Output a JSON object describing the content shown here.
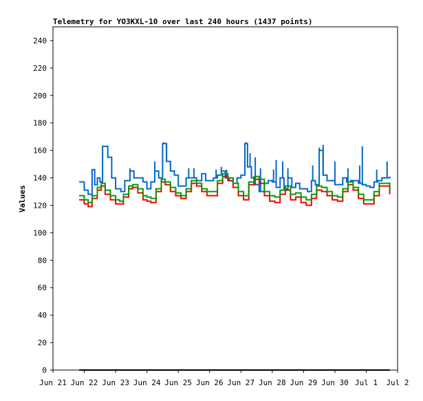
{
  "chart_data": {
    "type": "line",
    "title": "Telemetry for YO3KXL-10 over last 240 hours (1437 points)",
    "xlabel": "",
    "ylabel": "Values",
    "ylim": [
      0,
      250
    ],
    "yticks": [
      0,
      20,
      40,
      60,
      80,
      100,
      120,
      140,
      160,
      180,
      200,
      220,
      240
    ],
    "xlim": [
      "2023-06-21",
      "2023-07-02"
    ],
    "xticks": [
      {
        "date": "2023-06-21",
        "label": "Jun 21"
      },
      {
        "date": "2023-06-22",
        "label": "Jun 22"
      },
      {
        "date": "2023-06-23",
        "label": "Jun 23"
      },
      {
        "date": "2023-06-24",
        "label": "Jun 24"
      },
      {
        "date": "2023-06-25",
        "label": "Jun 25"
      },
      {
        "date": "2023-06-26",
        "label": "Jun 26"
      },
      {
        "date": "2023-06-27",
        "label": "Jun 27"
      },
      {
        "date": "2023-06-28",
        "label": "Jun 28"
      },
      {
        "date": "2023-06-29",
        "label": "Jun 29"
      },
      {
        "date": "2023-06-30",
        "label": "Jun 30"
      },
      {
        "date": "2023-07-01",
        "label": "Jul 1"
      },
      {
        "date": "2023-07-02",
        "label": "Jul 2"
      }
    ],
    "grid": false,
    "legend": "none",
    "series": [
      {
        "color": "#0066cc",
        "points": [
          [
            "2023-06-21 20:00",
            137
          ],
          [
            "2023-06-22 00:00",
            131
          ],
          [
            "2023-06-22 03:00",
            128
          ],
          [
            "2023-06-22 06:00",
            146
          ],
          [
            "2023-06-22 08:00",
            135
          ],
          [
            "2023-06-22 10:00",
            140
          ],
          [
            "2023-06-22 12:00",
            137
          ],
          [
            "2023-06-22 14:00",
            163
          ],
          [
            "2023-06-22 18:00",
            155
          ],
          [
            "2023-06-22 21:00",
            140
          ],
          [
            "2023-06-23 00:00",
            132
          ],
          [
            "2023-06-23 04:00",
            130
          ],
          [
            "2023-06-23 07:00",
            138
          ],
          [
            "2023-06-23 09:00",
            138
          ],
          [
            "2023-06-23 11:00",
            145
          ],
          [
            "2023-06-23 14:00",
            140
          ],
          [
            "2023-06-23 18:00",
            140
          ],
          [
            "2023-06-23 21:00",
            137
          ],
          [
            "2023-06-24 00:00",
            132
          ],
          [
            "2023-06-24 03:00",
            137
          ],
          [
            "2023-06-24 06:00",
            145
          ],
          [
            "2023-06-24 09:00",
            140
          ],
          [
            "2023-06-24 12:00",
            165
          ],
          [
            "2023-06-24 15:00",
            152
          ],
          [
            "2023-06-24 18:00",
            145
          ],
          [
            "2023-06-24 21:00",
            142
          ],
          [
            "2023-06-25 00:00",
            134
          ],
          [
            "2023-06-25 03:00",
            134
          ],
          [
            "2023-06-25 06:00",
            140
          ],
          [
            "2023-06-25 08:00",
            140
          ],
          [
            "2023-06-25 11:00",
            140
          ],
          [
            "2023-06-25 14:00",
            138
          ],
          [
            "2023-06-25 18:00",
            143
          ],
          [
            "2023-06-25 21:00",
            138
          ],
          [
            "2023-06-26 00:00",
            138
          ],
          [
            "2023-06-26 03:00",
            140
          ],
          [
            "2023-06-26 06:00",
            142
          ],
          [
            "2023-06-26 09:00",
            145
          ],
          [
            "2023-06-26 12:00",
            140
          ],
          [
            "2023-06-26 15:00",
            138
          ],
          [
            "2023-06-26 18:00",
            136
          ],
          [
            "2023-06-26 21:00",
            140
          ],
          [
            "2023-06-27 00:00",
            142
          ],
          [
            "2023-06-27 03:00",
            165
          ],
          [
            "2023-06-27 05:00",
            148
          ],
          [
            "2023-06-27 08:00",
            140
          ],
          [
            "2023-06-27 11:00",
            135
          ],
          [
            "2023-06-27 14:00",
            130
          ],
          [
            "2023-06-27 18:00",
            136
          ],
          [
            "2023-06-27 21:00",
            138
          ],
          [
            "2023-06-28 00:00",
            137
          ],
          [
            "2023-06-28 03:00",
            133
          ],
          [
            "2023-06-28 06:00",
            140
          ],
          [
            "2023-06-28 09:00",
            132
          ],
          [
            "2023-06-28 12:00",
            140
          ],
          [
            "2023-06-28 15:00",
            133
          ],
          [
            "2023-06-28 18:00",
            136
          ],
          [
            "2023-06-28 21:00",
            132
          ],
          [
            "2023-06-29 00:00",
            132
          ],
          [
            "2023-06-29 03:00",
            130
          ],
          [
            "2023-06-29 06:00",
            138
          ],
          [
            "2023-06-29 09:00",
            135
          ],
          [
            "2023-06-29 12:00",
            160
          ],
          [
            "2023-06-29 15:00",
            142
          ],
          [
            "2023-06-29 18:00",
            138
          ],
          [
            "2023-06-29 21:00",
            138
          ],
          [
            "2023-06-30 00:00",
            135
          ],
          [
            "2023-06-30 03:00",
            135
          ],
          [
            "2023-06-30 06:00",
            140
          ],
          [
            "2023-06-30 09:00",
            137
          ],
          [
            "2023-06-30 12:00",
            138
          ],
          [
            "2023-06-30 15:00",
            138
          ],
          [
            "2023-06-30 18:00",
            136
          ],
          [
            "2023-06-30 21:00",
            135
          ],
          [
            "2023-07-01 00:00",
            134
          ],
          [
            "2023-07-01 03:00",
            133
          ],
          [
            "2023-07-01 06:00",
            137
          ],
          [
            "2023-07-01 09:00",
            138
          ],
          [
            "2023-07-01 12:00",
            140
          ],
          [
            "2023-07-01 15:00",
            140
          ],
          [
            "2023-07-01 18:00",
            141
          ]
        ],
        "spikes": [
          [
            "2023-06-22 06:00",
            146
          ],
          [
            "2023-06-22 15:00",
            163
          ],
          [
            "2023-06-23 11:00",
            147
          ],
          [
            "2023-06-24 06:00",
            152
          ],
          [
            "2023-06-24 13:00",
            166
          ],
          [
            "2023-06-24 15:00",
            165
          ],
          [
            "2023-06-25 08:00",
            147
          ],
          [
            "2023-06-25 12:00",
            147
          ],
          [
            "2023-06-26 05:00",
            146
          ],
          [
            "2023-06-26 09:00",
            148
          ],
          [
            "2023-06-26 13:00",
            146
          ],
          [
            "2023-06-27 04:00",
            166
          ],
          [
            "2023-06-27 07:00",
            158
          ],
          [
            "2023-06-27 11:00",
            155
          ],
          [
            "2023-06-27 15:00",
            147
          ],
          [
            "2023-06-28 01:00",
            146
          ],
          [
            "2023-06-28 03:00",
            153
          ],
          [
            "2023-06-28 08:00",
            152
          ],
          [
            "2023-06-28 12:00",
            147
          ],
          [
            "2023-06-29 07:00",
            149
          ],
          [
            "2023-06-29 12:00",
            162
          ],
          [
            "2023-06-29 15:00",
            164
          ],
          [
            "2023-06-30 00:00",
            152
          ],
          [
            "2023-06-30 10:00",
            147
          ],
          [
            "2023-06-30 19:00",
            149
          ],
          [
            "2023-06-30 21:00",
            163
          ],
          [
            "2023-07-01 08:00",
            146
          ],
          [
            "2023-07-01 16:00",
            152
          ]
        ]
      },
      {
        "color": "#ee0000",
        "points": [
          [
            "2023-06-21 20:00",
            124
          ],
          [
            "2023-06-22 00:00",
            121
          ],
          [
            "2023-06-22 03:00",
            119
          ],
          [
            "2023-06-22 06:00",
            125
          ],
          [
            "2023-06-22 10:00",
            131
          ],
          [
            "2023-06-22 13:00",
            134
          ],
          [
            "2023-06-22 16:00",
            128
          ],
          [
            "2023-06-22 20:00",
            124
          ],
          [
            "2023-06-23 00:00",
            121
          ],
          [
            "2023-06-23 03:00",
            121
          ],
          [
            "2023-06-23 06:00",
            126
          ],
          [
            "2023-06-23 10:00",
            132
          ],
          [
            "2023-06-23 13:00",
            133
          ],
          [
            "2023-06-23 17:00",
            129
          ],
          [
            "2023-06-23 21:00",
            124
          ],
          [
            "2023-06-24 00:00",
            123
          ],
          [
            "2023-06-24 03:00",
            122
          ],
          [
            "2023-06-24 07:00",
            130
          ],
          [
            "2023-06-24 11:00",
            137
          ],
          [
            "2023-06-24 14:00",
            135
          ],
          [
            "2023-06-24 18:00",
            130
          ],
          [
            "2023-06-24 22:00",
            127
          ],
          [
            "2023-06-25 02:00",
            125
          ],
          [
            "2023-06-25 06:00",
            130
          ],
          [
            "2023-06-25 10:00",
            136
          ],
          [
            "2023-06-25 14:00",
            134
          ],
          [
            "2023-06-25 18:00",
            130
          ],
          [
            "2023-06-25 22:00",
            127
          ],
          [
            "2023-06-26 02:00",
            127
          ],
          [
            "2023-06-26 06:00",
            136
          ],
          [
            "2023-06-26 10:00",
            141
          ],
          [
            "2023-06-26 14:00",
            138
          ],
          [
            "2023-06-26 18:00",
            133
          ],
          [
            "2023-06-26 22:00",
            127
          ],
          [
            "2023-06-27 02:00",
            124
          ],
          [
            "2023-06-27 06:00",
            135
          ],
          [
            "2023-06-27 10:00",
            139
          ],
          [
            "2023-06-27 14:00",
            136
          ],
          [
            "2023-06-27 18:00",
            127
          ],
          [
            "2023-06-27 22:00",
            123
          ],
          [
            "2023-06-28 02:00",
            122
          ],
          [
            "2023-06-28 06:00",
            128
          ],
          [
            "2023-06-28 10:00",
            131
          ],
          [
            "2023-06-28 14:00",
            124
          ],
          [
            "2023-06-28 18:00",
            126
          ],
          [
            "2023-06-28 22:00",
            122
          ],
          [
            "2023-06-29 02:00",
            120
          ],
          [
            "2023-06-29 06:00",
            125
          ],
          [
            "2023-06-29 10:00",
            131
          ],
          [
            "2023-06-29 14:00",
            130
          ],
          [
            "2023-06-29 18:00",
            127
          ],
          [
            "2023-06-29 22:00",
            124
          ],
          [
            "2023-06-30 02:00",
            123
          ],
          [
            "2023-06-30 06:00",
            130
          ],
          [
            "2023-06-30 10:00",
            135
          ],
          [
            "2023-06-30 14:00",
            131
          ],
          [
            "2023-06-30 18:00",
            125
          ],
          [
            "2023-06-30 22:00",
            121
          ],
          [
            "2023-07-01 02:00",
            121
          ],
          [
            "2023-07-01 06:00",
            127
          ],
          [
            "2023-07-01 10:00",
            134
          ],
          [
            "2023-07-01 14:00",
            134
          ],
          [
            "2023-07-01 18:00",
            128
          ]
        ]
      },
      {
        "color": "#009900",
        "points": [
          [
            "2023-06-21 20:00",
            127
          ],
          [
            "2023-06-22 00:00",
            124
          ],
          [
            "2023-06-22 03:00",
            122
          ],
          [
            "2023-06-22 06:00",
            127
          ],
          [
            "2023-06-22 10:00",
            133
          ],
          [
            "2023-06-22 13:00",
            136
          ],
          [
            "2023-06-22 16:00",
            131
          ],
          [
            "2023-06-22 20:00",
            127
          ],
          [
            "2023-06-23 00:00",
            124
          ],
          [
            "2023-06-23 03:00",
            123
          ],
          [
            "2023-06-23 06:00",
            128
          ],
          [
            "2023-06-23 10:00",
            134
          ],
          [
            "2023-06-23 13:00",
            135
          ],
          [
            "2023-06-23 17:00",
            132
          ],
          [
            "2023-06-23 21:00",
            127
          ],
          [
            "2023-06-24 00:00",
            126
          ],
          [
            "2023-06-24 03:00",
            125
          ],
          [
            "2023-06-24 07:00",
            132
          ],
          [
            "2023-06-24 11:00",
            139
          ],
          [
            "2023-06-24 14:00",
            137
          ],
          [
            "2023-06-24 18:00",
            133
          ],
          [
            "2023-06-24 22:00",
            129
          ],
          [
            "2023-06-25 02:00",
            127
          ],
          [
            "2023-06-25 06:00",
            132
          ],
          [
            "2023-06-25 10:00",
            138
          ],
          [
            "2023-06-25 14:00",
            136
          ],
          [
            "2023-06-25 18:00",
            132
          ],
          [
            "2023-06-25 22:00",
            130
          ],
          [
            "2023-06-26 02:00",
            130
          ],
          [
            "2023-06-26 06:00",
            138
          ],
          [
            "2023-06-26 10:00",
            143
          ],
          [
            "2023-06-26 14:00",
            140
          ],
          [
            "2023-06-26 18:00",
            136
          ],
          [
            "2023-06-26 22:00",
            130
          ],
          [
            "2023-06-27 02:00",
            127
          ],
          [
            "2023-06-27 06:00",
            137
          ],
          [
            "2023-06-27 10:00",
            141
          ],
          [
            "2023-06-27 14:00",
            139
          ],
          [
            "2023-06-27 18:00",
            130
          ],
          [
            "2023-06-27 22:00",
            127
          ],
          [
            "2023-06-28 02:00",
            126
          ],
          [
            "2023-06-28 06:00",
            131
          ],
          [
            "2023-06-28 10:00",
            134
          ],
          [
            "2023-06-28 14:00",
            128
          ],
          [
            "2023-06-28 18:00",
            129
          ],
          [
            "2023-06-28 22:00",
            126
          ],
          [
            "2023-06-29 02:00",
            124
          ],
          [
            "2023-06-29 06:00",
            128
          ],
          [
            "2023-06-29 10:00",
            134
          ],
          [
            "2023-06-29 14:00",
            133
          ],
          [
            "2023-06-29 18:00",
            130
          ],
          [
            "2023-06-29 22:00",
            127
          ],
          [
            "2023-06-30 02:00",
            126
          ],
          [
            "2023-06-30 06:00",
            132
          ],
          [
            "2023-06-30 10:00",
            137
          ],
          [
            "2023-06-30 14:00",
            133
          ],
          [
            "2023-06-30 18:00",
            128
          ],
          [
            "2023-06-30 22:00",
            124
          ],
          [
            "2023-07-01 02:00",
            124
          ],
          [
            "2023-07-01 06:00",
            130
          ],
          [
            "2023-07-01 10:00",
            136
          ],
          [
            "2023-07-01 14:00",
            136
          ],
          [
            "2023-07-01 18:00",
            131
          ]
        ]
      },
      {
        "color": "#000000",
        "points": [
          [
            "2023-06-21 20:00",
            0
          ],
          [
            "2023-07-01 18:00",
            0
          ]
        ]
      }
    ]
  }
}
